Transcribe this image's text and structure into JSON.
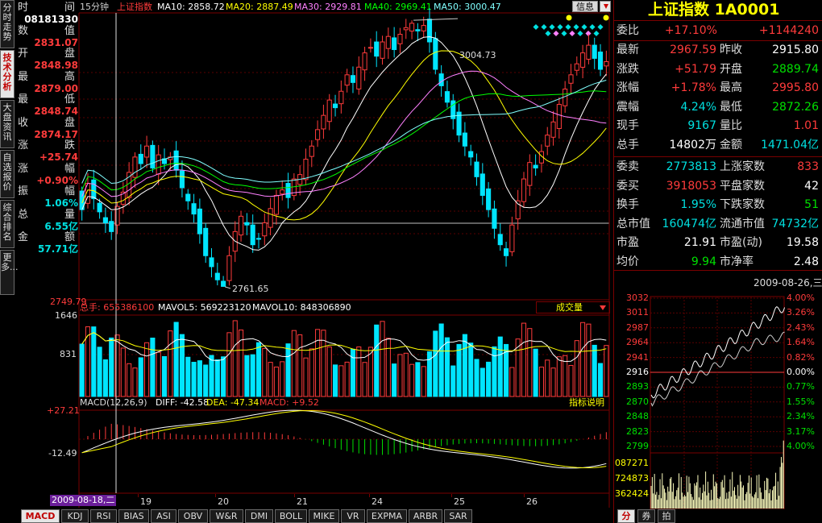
{
  "left_tabs": [
    "分时走势",
    "技术分析",
    "大盘资讯",
    "自选报价",
    "综合排名",
    "更多..."
  ],
  "header": {
    "period": "15分钟",
    "name": "上证指数",
    "ma10": "MA10: 2858.72",
    "ma20": "MA20: 2887.49",
    "ma30": "MA30: 2929.81",
    "ma40": "MA40: 2969.41",
    "ma50": "MA50: 3000.47",
    "info_button": "信息",
    "colors": {
      "ma10": "#ffffff",
      "ma20": "#ffff00",
      "ma30": "#ff80ff",
      "ma40": "#00ff00",
      "ma50": "#80ffff"
    }
  },
  "cursor_info": [
    {
      "left": "时",
      "right": "间",
      "value": "08181330",
      "color": "#ffffff"
    },
    {
      "left": "数",
      "right": "值",
      "value": "2831.07",
      "color": "#ff3b3b"
    },
    {
      "left": "开",
      "right": "盘",
      "value": "2848.98",
      "color": "#ff3b3b"
    },
    {
      "left": "最",
      "right": "高",
      "value": "2879.00",
      "color": "#ff3b3b"
    },
    {
      "left": "最",
      "right": "低",
      "value": "2848.74",
      "color": "#ff3b3b"
    },
    {
      "left": "收",
      "right": "盘",
      "value": "2874.17",
      "color": "#ff3b3b"
    },
    {
      "left": "涨",
      "right": "跌",
      "value": "+25.74",
      "color": "#ff3b3b"
    },
    {
      "left": "涨",
      "right": "幅",
      "value": "+0.90%",
      "color": "#ff3b3b"
    },
    {
      "left": "振",
      "right": "幅",
      "value": "1.06%",
      "color": "#00e0e0"
    },
    {
      "left": "总",
      "right": "量",
      "value": "6.55亿",
      "color": "#00e0e0"
    },
    {
      "left": "金",
      "right": "额",
      "value": "57.71亿",
      "color": "#00e0e0"
    }
  ],
  "kline_labels": {
    "high": "3004.73",
    "low": "2761.65",
    "axis_bottom": "2749.79"
  },
  "volume_header": {
    "total": "总手: 655386100",
    "mavol5": "MAVOL5: 569223120",
    "mavol10": "MAVOL10: 848306890",
    "selector": "成交量",
    "axis_top": "1646",
    "axis_mid": "831"
  },
  "macd_header": {
    "title": "MACD(12,26,9)",
    "diff": "DIFF: -42.58",
    "dea": "DEA: -47.34",
    "macd": "MACD: +9.52",
    "help": "指标说明",
    "axis_top": "+27.21",
    "axis_mid": "-12.49"
  },
  "date_axis": {
    "cursor_date": "2009-08-18,二",
    "ticks": [
      "19",
      "20",
      "21",
      "24",
      "25",
      "26"
    ]
  },
  "bottom_tabs": [
    "MACD",
    "KDJ",
    "RSI",
    "BIAS",
    "ASI",
    "OBV",
    "W&R",
    "DMI",
    "BOLL",
    "MIKE",
    "VR",
    "EXPMA",
    "ARBR",
    "SAR"
  ],
  "right_panel": {
    "title": "上证指数 1A0001",
    "weibi": {
      "label": "委比",
      "pct": "+17.10%",
      "value": "+1144240"
    },
    "rows1": [
      {
        "l": "最新",
        "lv": "2967.59",
        "lc": "#ff3b3b",
        "r": "昨收",
        "rv": "2915.80",
        "rc": "#ffffff"
      },
      {
        "l": "涨跌",
        "lv": "+51.79",
        "lc": "#ff3b3b",
        "r": "开盘",
        "rv": "2889.74",
        "rc": "#00e000"
      },
      {
        "l": "涨幅",
        "lv": "+1.78%",
        "lc": "#ff3b3b",
        "r": "最高",
        "rv": "2995.80",
        "rc": "#ff3b3b"
      },
      {
        "l": "震幅",
        "lv": "4.24%",
        "lc": "#00e0e0",
        "r": "最低",
        "rv": "2872.26",
        "rc": "#00e000"
      },
      {
        "l": "现手",
        "lv": "9167",
        "lc": "#00e0e0",
        "r": "量比",
        "rv": "1.01",
        "rc": "#ff3b3b"
      },
      {
        "l": "总手",
        "lv": "14802万",
        "lc": "#ffffff",
        "r": "金额",
        "rv": "1471.04亿",
        "rc": "#00e0e0"
      }
    ],
    "rows2": [
      {
        "l": "委卖",
        "lv": "2773813",
        "lc": "#00e0e0",
        "r": "上涨家数",
        "rv": "833",
        "rc": "#ff3b3b"
      },
      {
        "l": "委买",
        "lv": "3918053",
        "lc": "#ff3b3b",
        "r": "平盘家数",
        "rv": "42",
        "rc": "#ffffff"
      },
      {
        "l": "换手",
        "lv": "1.95%",
        "lc": "#00e0e0",
        "r": "下跌家数",
        "rv": "51",
        "rc": "#00e000"
      },
      {
        "l": "总市值",
        "lv": "160474亿",
        "lc": "#00e0e0",
        "r": "流通市值",
        "rv": "74732亿",
        "rc": "#00e0e0"
      },
      {
        "l": "市盈",
        "lv": "21.91",
        "lc": "#ffffff",
        "r": "市盈(动)",
        "rv": "19.58",
        "rc": "#ffffff"
      },
      {
        "l": "均价",
        "lv": "9.94",
        "lc": "#00e000",
        "r": "市净率",
        "rv": "2.48",
        "rc": "#ffffff"
      }
    ],
    "mini_date": "2009-08-26,三",
    "mini_prices": [
      "3032",
      "3011",
      "2987",
      "2964",
      "2941",
      "2916",
      "2893",
      "2870",
      "2848",
      "2823",
      "2799"
    ],
    "mini_pcts": [
      "4.00%",
      "3.26%",
      "2.43%",
      "1.64%",
      "0.82%",
      "0.00%",
      "0.77%",
      "1.55%",
      "2.34%",
      "3.17%",
      "4.00%"
    ],
    "mini_vols": [
      "087271",
      "724873",
      "362424"
    ],
    "bottom_buttons": [
      "分",
      "券",
      "拍"
    ]
  },
  "chart_data": {
    "type": "candlestick",
    "period": "15分钟",
    "ylim": [
      2749.79,
      3010
    ],
    "ma": {
      "MA10": "2858.72",
      "MA20": "2887.49",
      "MA30": "2929.81",
      "MA40": "2969.41",
      "MA50": "3000.47"
    },
    "volume": {
      "total": "655386100",
      "mavol5": "569223120",
      "mavol10": "848306890"
    },
    "macd": {
      "params": "12,26,9",
      "diff": "-42.58",
      "dea": "-47.34",
      "macd": "+9.52"
    }
  }
}
